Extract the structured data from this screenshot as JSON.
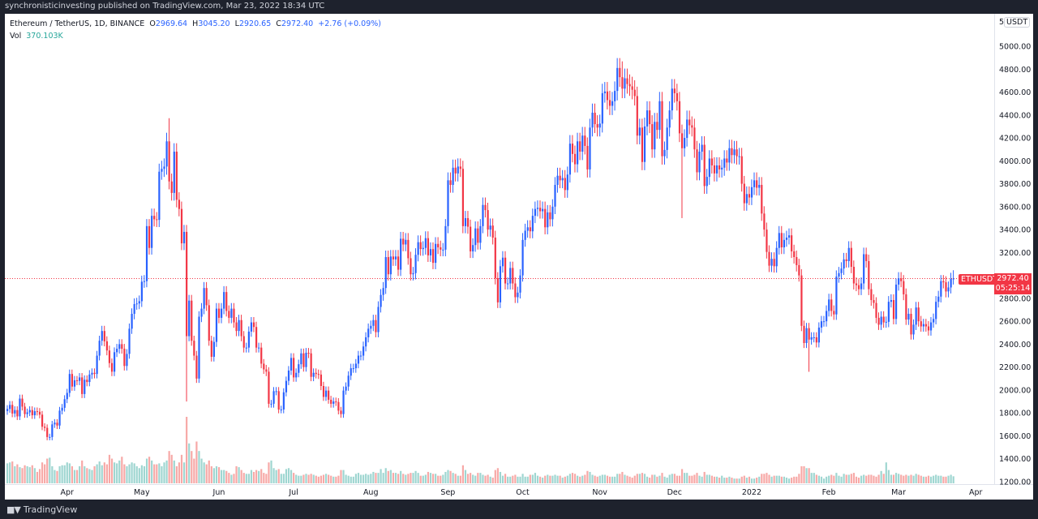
{
  "publisher_line": "synchronisticinvesting published on TradingView.com, Mar 23, 2022 18:34 UTC",
  "legend": {
    "symbol": "Ethereum / TetherUS, 1D, BINANCE",
    "o_label": "O",
    "o": "2969.64",
    "h_label": "H",
    "h": "3045.20",
    "l_label": "L",
    "l": "2920.65",
    "c_label": "C",
    "c": "2972.40",
    "change": "+2.76 (+0.09%)",
    "vol_label": "Vol",
    "vol": "370.103K"
  },
  "price_axis": {
    "currency_prefix": "5",
    "currency": "USDT"
  },
  "last_price": {
    "symbol_tag": "ETHUSDT",
    "price": "2972.40",
    "countdown": "05:25:14"
  },
  "branding": {
    "name": "TradingView",
    "logo_text": "TV"
  },
  "colors": {
    "up": "#2962ff",
    "down": "#f23645",
    "vol_up": "#9fd6d1",
    "vol_down": "#f7a9a7",
    "last_price_line": "#f23645",
    "background": "#ffffff",
    "frame": "#1e222d"
  },
  "chart_data": {
    "type": "candlestick",
    "interval": "1D",
    "ylim": [
      1200,
      5000
    ],
    "y_ticks": [
      "1200.00",
      "1400.00",
      "1600.00",
      "1800.00",
      "2000.00",
      "2200.00",
      "2400.00",
      "2600.00",
      "2800.00",
      "3000.00",
      "3200.00",
      "3400.00",
      "3600.00",
      "3800.00",
      "4000.00",
      "4200.00",
      "4400.00",
      "4600.00",
      "4800.00",
      "5000.00"
    ],
    "x_ticks": [
      "Apr",
      "May",
      "Jun",
      "Jul",
      "Aug",
      "Sep",
      "Oct",
      "Nov",
      "Dec",
      "2022",
      "Feb",
      "Mar",
      "Apr"
    ],
    "grid": false,
    "last_price_line": 2972.4,
    "close": [
      1835,
      1870,
      1795,
      1825,
      1770,
      1925,
      1855,
      1790,
      1805,
      1825,
      1780,
      1815,
      1810,
      1785,
      1680,
      1670,
      1590,
      1590,
      1700,
      1715,
      1690,
      1820,
      1845,
      1920,
      1975,
      2140,
      2030,
      2085,
      2080,
      2110,
      1965,
      2090,
      2070,
      2135,
      2150,
      2140,
      2300,
      2430,
      2515,
      2425,
      2345,
      2235,
      2160,
      2330,
      2360,
      2400,
      2360,
      2210,
      2315,
      2535,
      2665,
      2750,
      2755,
      2775,
      2945,
      2950,
      3430,
      3240,
      3520,
      3490,
      3485,
      3905,
      3930,
      3950,
      4170,
      3820,
      3720,
      4080,
      3660,
      3580,
      3280,
      3380,
      2470,
      2780,
      2430,
      2300,
      2100,
      2640,
      2710,
      2890,
      2740,
      2430,
      2290,
      2420,
      2710,
      2630,
      2710,
      2855,
      2690,
      2630,
      2710,
      2590,
      2515,
      2610,
      2470,
      2370,
      2370,
      2510,
      2590,
      2550,
      2370,
      2370,
      2230,
      2180,
      2160,
      1880,
      1880,
      1990,
      1990,
      1830,
      1830,
      1980,
      2080,
      2170,
      2280,
      2110,
      2150,
      2225,
      2320,
      2200,
      2325,
      2320,
      2115,
      2150,
      2140,
      2135,
      2035,
      1940,
      1995,
      1915,
      1880,
      1900,
      1895,
      1820,
      1790,
      1995,
      2030,
      2125,
      2190,
      2190,
      2230,
      2300,
      2300,
      2380,
      2460,
      2535,
      2560,
      2610,
      2505,
      2725,
      2830,
      2890,
      3160,
      3010,
      3165,
      3140,
      3165,
      3050,
      3320,
      3270,
      3310,
      3150,
      3010,
      3020,
      3180,
      3290,
      3230,
      3240,
      3325,
      3175,
      3230,
      3110,
      3275,
      3245,
      3225,
      3225,
      3430,
      3830,
      3790,
      3940,
      3890,
      3950,
      3930,
      3430,
      3500,
      3425,
      3210,
      3265,
      3410,
      3285,
      3430,
      3615,
      3570,
      3400,
      3435,
      3330,
      2975,
      2765,
      3080,
      3155,
      2930,
      2930,
      3065,
      2930,
      2810,
      2850,
      3000,
      3310,
      3390,
      3420,
      3385,
      3520,
      3580,
      3590,
      3560,
      3580,
      3420,
      3550,
      3490,
      3600,
      3790,
      3870,
      3830,
      3850,
      3745,
      3880,
      4150,
      4060,
      3970,
      4170,
      4080,
      4220,
      4130,
      3925,
      4290,
      4420,
      4320,
      4290,
      4325,
      4590,
      4605,
      4530,
      4480,
      4520,
      4610,
      4810,
      4730,
      4630,
      4720,
      4670,
      4650,
      4620,
      4565,
      4220,
      4290,
      3990,
      4300,
      4440,
      4320,
      4100,
      4340,
      4270,
      4520,
      4040,
      4095,
      4290,
      4440,
      4630,
      4590,
      4520,
      4240,
      4110,
      4200,
      4360,
      4310,
      4290,
      4100,
      3900,
      4080,
      4140,
      3780,
      3860,
      4020,
      3960,
      3890,
      3960,
      3925,
      3940,
      4020,
      3985,
      4110,
      4050,
      4100,
      4040,
      4040,
      3800,
      3630,
      3710,
      3680,
      3770,
      3830,
      3765,
      3790,
      3540,
      3400,
      3205,
      3085,
      3145,
      3080,
      3240,
      3370,
      3245,
      3310,
      3330,
      3350,
      3210,
      3160,
      3090,
      3000,
      2560,
      2410,
      2540,
      2440,
      2460,
      2460,
      2415,
      2545,
      2600,
      2600,
      2690,
      2790,
      2690,
      2660,
      2990,
      3020,
      3060,
      3140,
      3125,
      3240,
      3075,
      2930,
      2915,
      2880,
      2930,
      3185,
      3125,
      2880,
      2785,
      2760,
      2630,
      2570,
      2640,
      2590,
      2595,
      2770,
      2785,
      2620,
      2920,
      2975,
      2950,
      2835,
      2615,
      2665,
      2485,
      2570,
      2720,
      2600,
      2555,
      2575,
      2555,
      2520,
      2590,
      2620,
      2770,
      2815,
      2950,
      2940,
      2860,
      2895,
      2969.64,
      2972.4
    ],
    "notable_extremes": [
      {
        "date": "2021-05-12",
        "high": 4372
      },
      {
        "date": "2021-05-19",
        "low": 1900
      },
      {
        "date": "2021-11-10",
        "high": 4868
      },
      {
        "date": "2021-12-04",
        "low": 3500
      },
      {
        "date": "2022-01-24",
        "low": 2159
      },
      {
        "date": "2022-03-23",
        "high": 3045.2,
        "low": 2920.65
      }
    ],
    "volume_k": [
      1050,
      1100,
      1150,
      900,
      1000,
      850,
      800,
      950,
      900,
      850,
      950,
      800,
      600,
      750,
      1100,
      1000,
      1300,
      1350,
      900,
      700,
      650,
      900,
      950,
      950,
      1100,
      1050,
      900,
      700,
      700,
      900,
      1200,
      900,
      800,
      750,
      700,
      900,
      1000,
      1150,
      950,
      1100,
      1000,
      1500,
      1300,
      1100,
      1050,
      1200,
      1400,
      1000,
      900,
      1000,
      1100,
      1050,
      900,
      800,
      950,
      900,
      1300,
      1400,
      1200,
      1000,
      1000,
      1050,
      900,
      1100,
      1200,
      1700,
      1500,
      1200,
      900,
      1100,
      1500,
      1100,
      3500,
      2100,
      1700,
      1300,
      2200,
      1700,
      1300,
      1100,
      1000,
      1200,
      900,
      800,
      900,
      850,
      700,
      700,
      650,
      550,
      450,
      500,
      900,
      850,
      700,
      550,
      500,
      500,
      700,
      600,
      700,
      650,
      750,
      550,
      500,
      1100,
      1200,
      800,
      700,
      750,
      500,
      500,
      750,
      800,
      700,
      550,
      450,
      400,
      400,
      450,
      500,
      450,
      500,
      450,
      400,
      350,
      400,
      450,
      500,
      450,
      400,
      350,
      350,
      400,
      700,
      700,
      450,
      400,
      350,
      350,
      500,
      550,
      450,
      450,
      500,
      450,
      500,
      600,
      550,
      550,
      750,
      550,
      800,
      650,
      700,
      550,
      550,
      500,
      650,
      500,
      450,
      500,
      550,
      550,
      650,
      550,
      400,
      400,
      450,
      600,
      550,
      500,
      500,
      400,
      400,
      450,
      600,
      700,
      650,
      550,
      500,
      400,
      400,
      950,
      700,
      500,
      550,
      450,
      400,
      550,
      550,
      450,
      400,
      450,
      350,
      300,
      700,
      800,
      600,
      400,
      500,
      350,
      350,
      400,
      450,
      350,
      350,
      500,
      350,
      350,
      450,
      450,
      550,
      400,
      350,
      300,
      400,
      450,
      400,
      400,
      450,
      400,
      400,
      300,
      350,
      400,
      500,
      550,
      500,
      400,
      350,
      400,
      450,
      650,
      600,
      450,
      400,
      350,
      400,
      450,
      450,
      400,
      350,
      350,
      350,
      500,
      500,
      600,
      450,
      400,
      350,
      300,
      400,
      500,
      500,
      550,
      500,
      350,
      300,
      450,
      450,
      350,
      400,
      550,
      350,
      300,
      450,
      500,
      500,
      400,
      400,
      750,
      550,
      550,
      400,
      400,
      450,
      550,
      400,
      350,
      600,
      450,
      450,
      400,
      350,
      350,
      300,
      400,
      300,
      300,
      350,
      300,
      250,
      250,
      250,
      350,
      400,
      300,
      350,
      250,
      250,
      300,
      350,
      500,
      500,
      550,
      450,
      350,
      400,
      400,
      400,
      350,
      350,
      300,
      250,
      300,
      350,
      350,
      500,
      900,
      900,
      800,
      800,
      550,
      550,
      450,
      400,
      350,
      250,
      350,
      400,
      450,
      400,
      550,
      400,
      350,
      500,
      450,
      450,
      500,
      550,
      350,
      300,
      400,
      450,
      400,
      450,
      450,
      400,
      350,
      450,
      650,
      500,
      1100,
      700,
      450,
      450,
      550,
      500,
      450,
      400,
      450,
      400,
      450,
      400,
      500,
      450,
      400,
      350,
      350,
      400,
      350,
      400,
      450,
      400,
      400,
      350,
      350,
      400,
      450,
      370.103
    ]
  }
}
